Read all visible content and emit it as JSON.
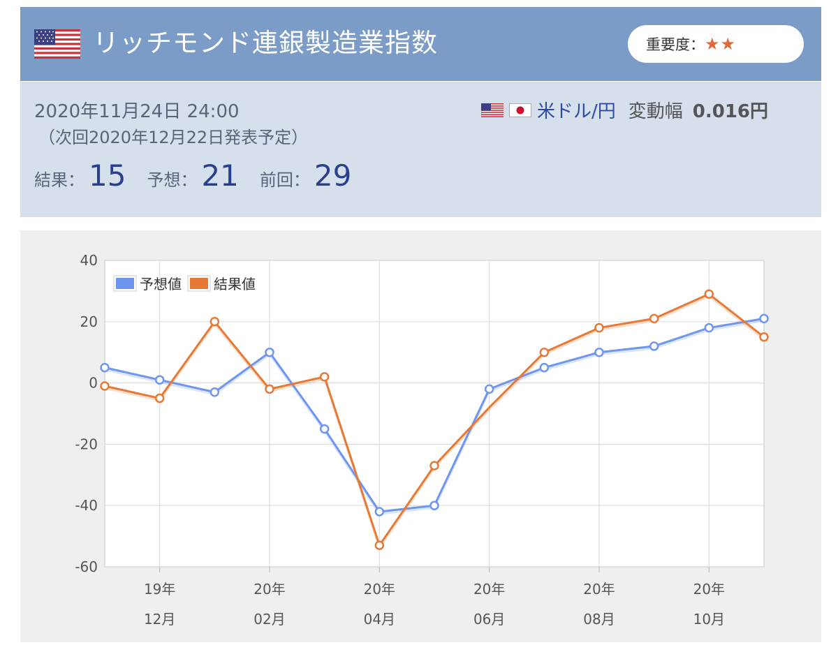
{
  "header": {
    "title": "リッチモンド連銀製造業指数",
    "importance_label": "重要度：",
    "importance_stars": "★★"
  },
  "info": {
    "date": "2020年11月24日 24:00",
    "next": "（次回2020年12月22日発表予定）",
    "pair_name": "米ドル/円",
    "range_label": "変動幅",
    "range_value": "0.016円",
    "result_label": "結果：",
    "result_value": "15",
    "forecast_label": "予想：",
    "forecast_value": "21",
    "previous_label": "前回：",
    "previous_value": "29"
  },
  "colors": {
    "forecast": "#6e96f0",
    "result": "#e57a37",
    "header_bg": "#7b9cc6",
    "info_bg": "#d6e0ec"
  },
  "chart_data": {
    "type": "line",
    "ylim": [
      -60,
      40
    ],
    "yticks": [
      40,
      20,
      0,
      -20,
      -40,
      -60
    ],
    "x": [
      "2019-11",
      "2019-12",
      "2020-01",
      "2020-02",
      "2020-03",
      "2020-04",
      "2020-05",
      "2020-06",
      "2020-07",
      "2020-08",
      "2020-09",
      "2020-10",
      "2020-11"
    ],
    "xtick_labels": [
      {
        "x": "2019-12",
        "year": "19年",
        "month": "12月"
      },
      {
        "x": "2020-02",
        "year": "20年",
        "month": "02月"
      },
      {
        "x": "2020-04",
        "year": "20年",
        "month": "04月"
      },
      {
        "x": "2020-06",
        "year": "20年",
        "month": "06月"
      },
      {
        "x": "2020-08",
        "year": "20年",
        "month": "08月"
      },
      {
        "x": "2020-10",
        "year": "20年",
        "month": "10月"
      }
    ],
    "series": [
      {
        "name": "予想値",
        "values": [
          5,
          1,
          -3,
          10,
          -15,
          -42,
          -40,
          -2,
          5,
          10,
          12,
          18,
          21
        ],
        "markers": [
          true,
          true,
          true,
          true,
          true,
          true,
          true,
          true,
          true,
          true,
          true,
          true,
          true
        ]
      },
      {
        "name": "結果値",
        "values": [
          -1,
          -5,
          20,
          -2,
          2,
          -53,
          -27,
          -8,
          10,
          18,
          21,
          29,
          15
        ],
        "markers": [
          true,
          true,
          true,
          true,
          true,
          true,
          true,
          false,
          true,
          true,
          true,
          true,
          true
        ]
      }
    ],
    "legend": "top-left",
    "grid": true
  }
}
